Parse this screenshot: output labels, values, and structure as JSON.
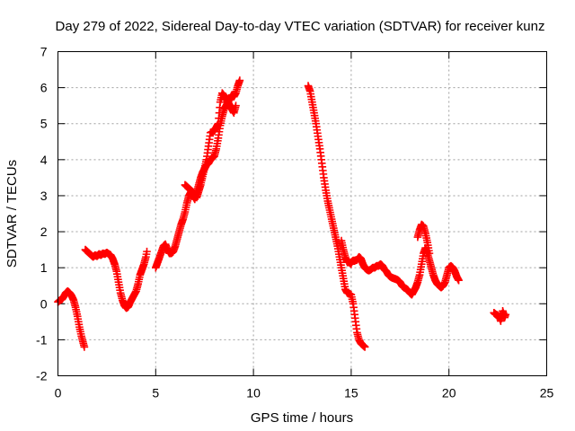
{
  "chart_data": {
    "type": "scatter",
    "title": "Day 279 of 2022, Sidereal Day-to-day VTEC variation (SDTVAR) for receiver kunz",
    "xlabel": "GPS time / hours",
    "ylabel": "SDTVAR / TECUs",
    "xlim": [
      0,
      25
    ],
    "ylim": [
      -2,
      7
    ],
    "xticks": [
      "0",
      "5",
      "10",
      "15",
      "20",
      "25"
    ],
    "yticks": [
      "-2",
      "-1",
      "0",
      "1",
      "2",
      "3",
      "4",
      "5",
      "6",
      "7"
    ],
    "grid": true,
    "marker": "plus",
    "color": "#ff0000",
    "series": [
      {
        "segments": [
          [
            [
              0.0,
              0.05
            ],
            [
              0.1,
              0.1
            ],
            [
              0.2,
              0.12
            ],
            [
              0.3,
              0.2
            ],
            [
              0.4,
              0.3
            ],
            [
              0.5,
              0.35
            ],
            [
              0.6,
              0.3
            ],
            [
              0.7,
              0.22
            ],
            [
              0.8,
              0.1
            ],
            [
              0.9,
              -0.1
            ],
            [
              1.0,
              -0.35
            ],
            [
              1.1,
              -0.65
            ],
            [
              1.2,
              -0.9
            ],
            [
              1.3,
              -1.1
            ],
            [
              1.35,
              -1.2
            ]
          ],
          [
            [
              1.4,
              1.5
            ],
            [
              1.5,
              1.45
            ],
            [
              1.6,
              1.4
            ],
            [
              1.7,
              1.35
            ],
            [
              1.8,
              1.3
            ],
            [
              1.9,
              1.35
            ],
            [
              2.0,
              1.32
            ],
            [
              2.1,
              1.38
            ],
            [
              2.2,
              1.35
            ],
            [
              2.3,
              1.4
            ],
            [
              2.4,
              1.38
            ],
            [
              2.5,
              1.42
            ],
            [
              2.6,
              1.38
            ],
            [
              2.7,
              1.35
            ],
            [
              2.8,
              1.25
            ],
            [
              2.9,
              1.1
            ],
            [
              3.0,
              0.9
            ],
            [
              3.1,
              0.6
            ],
            [
              3.2,
              0.3
            ],
            [
              3.3,
              0.1
            ],
            [
              3.4,
              -0.05
            ],
            [
              3.5,
              -0.12
            ],
            [
              3.6,
              -0.08
            ],
            [
              3.7,
              0.05
            ],
            [
              3.8,
              0.15
            ],
            [
              3.9,
              0.25
            ],
            [
              4.0,
              0.35
            ],
            [
              4.1,
              0.55
            ],
            [
              4.2,
              0.8
            ],
            [
              4.3,
              0.95
            ],
            [
              4.4,
              1.1
            ],
            [
              4.5,
              1.3
            ],
            [
              4.55,
              1.45
            ]
          ],
          [
            [
              5.0,
              1.0
            ],
            [
              5.1,
              1.15
            ],
            [
              5.2,
              1.3
            ],
            [
              5.3,
              1.45
            ],
            [
              5.4,
              1.6
            ],
            [
              5.5,
              1.65
            ],
            [
              5.6,
              1.5
            ],
            [
              5.7,
              1.4
            ],
            [
              5.8,
              1.4
            ],
            [
              5.9,
              1.45
            ],
            [
              6.0,
              1.6
            ],
            [
              6.1,
              1.8
            ],
            [
              6.2,
              2.0
            ],
            [
              6.3,
              2.2
            ],
            [
              6.4,
              2.35
            ],
            [
              6.5,
              2.55
            ],
            [
              6.6,
              2.8
            ],
            [
              6.7,
              3.0
            ],
            [
              6.8,
              3.1
            ],
            [
              6.9,
              3.0
            ],
            [
              7.0,
              2.9
            ],
            [
              7.1,
              3.1
            ],
            [
              7.2,
              3.3
            ],
            [
              7.3,
              3.5
            ],
            [
              7.4,
              3.65
            ],
            [
              7.5,
              3.75
            ],
            [
              7.6,
              3.85
            ],
            [
              7.7,
              3.9
            ],
            [
              7.8,
              4.0
            ],
            [
              7.9,
              4.05
            ],
            [
              8.0,
              4.1
            ],
            [
              8.1,
              4.3
            ],
            [
              8.2,
              4.6
            ],
            [
              8.3,
              4.95
            ],
            [
              8.4,
              5.2
            ],
            [
              8.5,
              5.4
            ],
            [
              8.6,
              5.5
            ],
            [
              8.7,
              5.6
            ],
            [
              8.8,
              5.7
            ],
            [
              8.9,
              5.8
            ],
            [
              9.0,
              5.75
            ],
            [
              9.1,
              5.85
            ],
            [
              9.2,
              6.05
            ],
            [
              9.3,
              6.2
            ]
          ],
          [
            [
              6.5,
              3.3
            ],
            [
              6.7,
              3.2
            ],
            [
              6.9,
              3.1
            ],
            [
              7.1,
              2.95
            ],
            [
              7.3,
              3.3
            ],
            [
              7.6,
              4.0
            ],
            [
              7.8,
              4.75
            ],
            [
              8.0,
              4.8
            ],
            [
              8.2,
              5.0
            ],
            [
              8.3,
              5.6
            ],
            [
              8.4,
              5.85
            ],
            [
              8.6,
              5.7
            ],
            [
              8.8,
              5.5
            ],
            [
              9.0,
              5.3
            ],
            [
              9.1,
              5.5
            ]
          ],
          [
            [
              12.8,
              6.05
            ],
            [
              12.9,
              5.9
            ],
            [
              13.0,
              5.6
            ],
            [
              13.1,
              5.3
            ],
            [
              13.2,
              5.0
            ],
            [
              13.3,
              4.65
            ],
            [
              13.4,
              4.3
            ],
            [
              13.5,
              3.9
            ],
            [
              13.6,
              3.5
            ],
            [
              13.7,
              3.15
            ],
            [
              13.8,
              2.85
            ],
            [
              13.9,
              2.6
            ],
            [
              14.0,
              2.35
            ],
            [
              14.1,
              2.1
            ],
            [
              14.2,
              1.85
            ],
            [
              14.3,
              1.6
            ],
            [
              14.4,
              1.3
            ],
            [
              14.5,
              1.0
            ],
            [
              14.6,
              0.7
            ],
            [
              14.7,
              0.4
            ],
            [
              14.8,
              0.3
            ],
            [
              14.9,
              0.28
            ],
            [
              15.0,
              0.25
            ],
            [
              15.1,
              0.0
            ],
            [
              15.2,
              -0.4
            ],
            [
              15.3,
              -0.8
            ],
            [
              15.4,
              -1.0
            ],
            [
              15.5,
              -1.1
            ],
            [
              15.6,
              -1.15
            ],
            [
              15.7,
              -1.2
            ]
          ],
          [
            [
              14.5,
              1.75
            ],
            [
              14.6,
              1.5
            ],
            [
              14.7,
              1.3
            ],
            [
              14.8,
              1.15
            ],
            [
              14.9,
              1.15
            ],
            [
              15.0,
              1.1
            ]
          ],
          [
            [
              15.0,
              1.15
            ],
            [
              15.1,
              1.2
            ],
            [
              15.2,
              1.2
            ],
            [
              15.3,
              1.22
            ],
            [
              15.4,
              1.3
            ],
            [
              15.5,
              1.25
            ],
            [
              15.6,
              1.1
            ],
            [
              15.7,
              1.0
            ],
            [
              15.8,
              0.95
            ],
            [
              15.9,
              0.92
            ],
            [
              16.0,
              0.95
            ],
            [
              16.1,
              1.0
            ],
            [
              16.2,
              1.0
            ],
            [
              16.3,
              1.05
            ],
            [
              16.4,
              1.05
            ],
            [
              16.5,
              1.1
            ],
            [
              16.6,
              1.05
            ],
            [
              16.7,
              0.95
            ],
            [
              16.8,
              0.9
            ],
            [
              16.9,
              0.8
            ],
            [
              17.0,
              0.75
            ],
            [
              17.1,
              0.72
            ],
            [
              17.2,
              0.7
            ],
            [
              17.3,
              0.68
            ],
            [
              17.4,
              0.65
            ],
            [
              17.5,
              0.6
            ],
            [
              17.6,
              0.5
            ],
            [
              17.7,
              0.45
            ],
            [
              17.8,
              0.42
            ],
            [
              17.9,
              0.38
            ],
            [
              18.0,
              0.3
            ],
            [
              18.1,
              0.25
            ],
            [
              18.2,
              0.35
            ],
            [
              18.3,
              0.45
            ],
            [
              18.4,
              0.6
            ],
            [
              18.5,
              0.8
            ],
            [
              18.6,
              1.1
            ],
            [
              18.7,
              1.4
            ],
            [
              18.8,
              1.55
            ],
            [
              18.9,
              1.4
            ],
            [
              19.0,
              1.2
            ],
            [
              19.1,
              1.0
            ],
            [
              19.2,
              0.8
            ],
            [
              19.3,
              0.65
            ],
            [
              19.4,
              0.55
            ],
            [
              19.5,
              0.5
            ],
            [
              19.6,
              0.45
            ],
            [
              19.7,
              0.5
            ],
            [
              19.8,
              0.6
            ],
            [
              19.9,
              0.8
            ],
            [
              20.0,
              1.0
            ],
            [
              20.1,
              1.05
            ],
            [
              20.2,
              1.0
            ],
            [
              20.3,
              0.9
            ],
            [
              20.4,
              0.75
            ],
            [
              20.5,
              0.65
            ]
          ],
          [
            [
              18.4,
              1.85
            ],
            [
              18.5,
              2.05
            ],
            [
              18.6,
              2.2
            ],
            [
              18.7,
              2.15
            ],
            [
              18.8,
              1.95
            ],
            [
              18.9,
              1.7
            ],
            [
              19.0,
              1.4
            ]
          ],
          [
            [
              22.3,
              -0.25
            ],
            [
              22.4,
              -0.3
            ],
            [
              22.5,
              -0.32
            ],
            [
              22.6,
              -0.4
            ],
            [
              22.65,
              -0.48
            ],
            [
              22.7,
              -0.35
            ],
            [
              22.75,
              -0.2
            ],
            [
              22.8,
              -0.28
            ],
            [
              22.85,
              -0.38
            ],
            [
              22.9,
              -0.3
            ]
          ]
        ]
      }
    ]
  }
}
